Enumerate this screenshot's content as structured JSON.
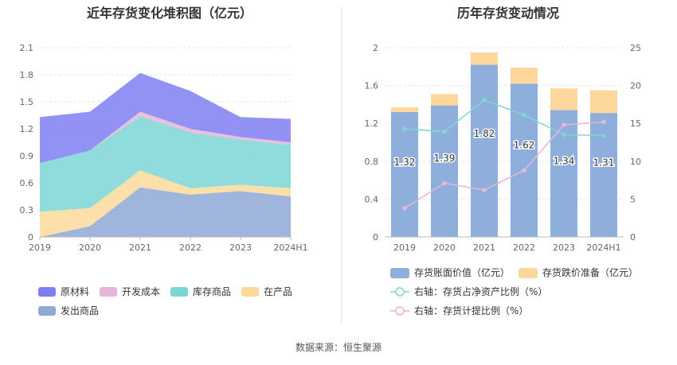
{
  "source_text": "数据来源：恒生聚源",
  "chart_data": [
    {
      "type": "area",
      "stacked": true,
      "title": "近年存货变化堆积图（亿元）",
      "categories": [
        "2019",
        "2020",
        "2021",
        "2022",
        "2023",
        "2024H1"
      ],
      "ylim": [
        0,
        2.1
      ],
      "yticks": [
        "0",
        "0.3",
        "0.6",
        "0.9",
        "1.2",
        "1.5",
        "1.8",
        "2.1"
      ],
      "grid": true,
      "legend_position": "bottom",
      "series": [
        {
          "name": "发出商品",
          "color": "#8fa8d6",
          "values": [
            0.0,
            0.12,
            0.55,
            0.47,
            0.51,
            0.45
          ]
        },
        {
          "name": "在产品",
          "color": "#fcd99a",
          "values": [
            0.28,
            0.2,
            0.19,
            0.07,
            0.07,
            0.09
          ]
        },
        {
          "name": "库存商品",
          "color": "#7dd6d6",
          "values": [
            0.54,
            0.64,
            0.6,
            0.62,
            0.5,
            0.48
          ]
        },
        {
          "name": "开发成本",
          "color": "#e8b4d8",
          "values": [
            0.0,
            0.0,
            0.05,
            0.04,
            0.03,
            0.03
          ]
        },
        {
          "name": "原材料",
          "color": "#7f7ff2",
          "values": [
            0.51,
            0.43,
            0.43,
            0.42,
            0.22,
            0.26
          ]
        }
      ],
      "legend_order": [
        "原材料",
        "开发成本",
        "库存商品",
        "在产品",
        "发出商品"
      ]
    },
    {
      "type": "bar",
      "stacked": true,
      "title": "历年存货变动情况",
      "categories": [
        "2019",
        "2020",
        "2021",
        "2022",
        "2023",
        "2024H1"
      ],
      "ylim": [
        0,
        2
      ],
      "yticks": [
        "0",
        "0.4",
        "0.8",
        "1.2",
        "1.6",
        "2"
      ],
      "y2lim": [
        0,
        25
      ],
      "y2ticks": [
        "0",
        "5",
        "10",
        "15",
        "20",
        "25"
      ],
      "grid": true,
      "legend_position": "bottom",
      "series": [
        {
          "name": "存货账面价值（亿元）",
          "color": "#8eaedb",
          "values": [
            1.32,
            1.39,
            1.82,
            1.62,
            1.34,
            1.31
          ],
          "labels": [
            "1.32",
            "1.39",
            "1.82",
            "1.62",
            "1.34",
            "1.31"
          ]
        },
        {
          "name": "存货跌价准备（亿元）",
          "color": "#fdd79c",
          "values": [
            0.05,
            0.12,
            0.13,
            0.17,
            0.23,
            0.24
          ]
        }
      ],
      "line_series": [
        {
          "name": "右轴：存货占净资产比例（%）",
          "color": "#7fd6d4",
          "axis": "right",
          "values": [
            14.3,
            13.9,
            18.1,
            16.1,
            13.5,
            13.4
          ]
        },
        {
          "name": "右轴：存货计提比例（%）",
          "color": "#e8b4d8",
          "axis": "right",
          "values": [
            3.8,
            7.1,
            6.2,
            8.8,
            14.8,
            15.2
          ]
        }
      ]
    }
  ]
}
